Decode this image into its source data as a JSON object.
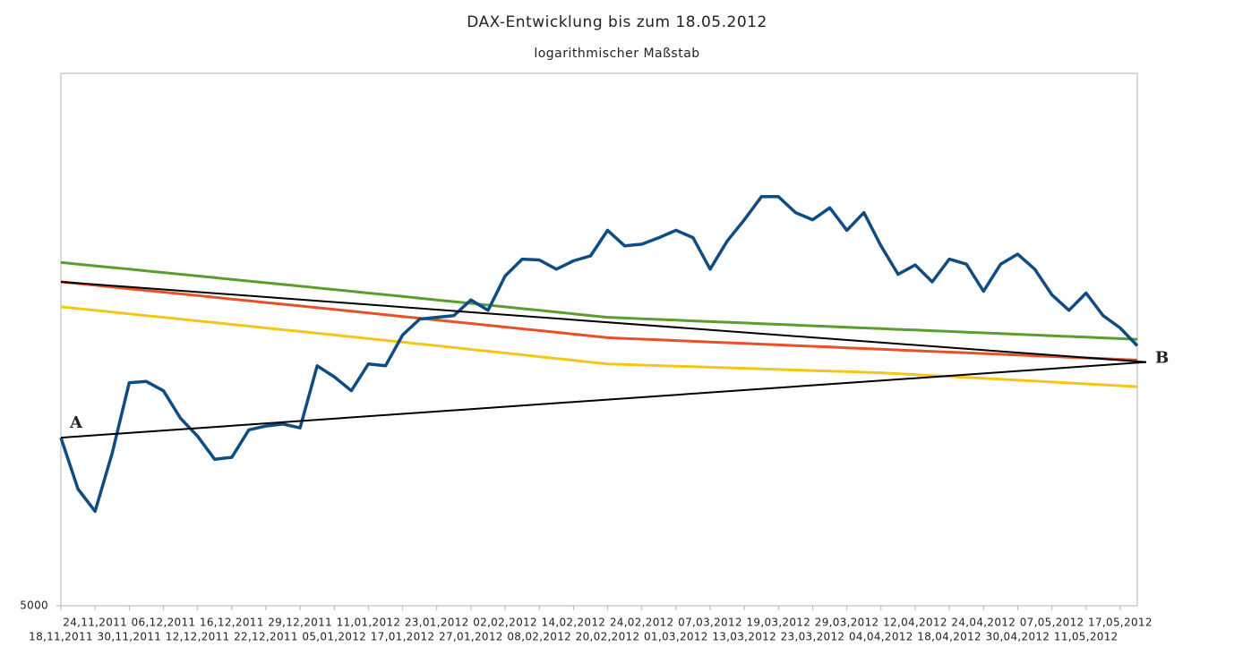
{
  "chart_data": {
    "type": "line",
    "title": "DAX-Entwicklung bis zum 18.05.2012",
    "subtitle": "logarithmischer Maßstab",
    "log_scale": true,
    "ylim": [
      5000,
      8000
    ],
    "yticks": [
      5000
    ],
    "categories": [
      "18,11,2011",
      null,
      "24,11,2011",
      null,
      "30,11,2011",
      null,
      "06,12,2011",
      null,
      "12,12,2011",
      null,
      "16,12,2011",
      null,
      "22,12,2011",
      null,
      "29,12,2011",
      null,
      "05,01,2012",
      null,
      "11,01,2012",
      null,
      "17,01,2012",
      null,
      "23,01,2012",
      null,
      "27,01,2012",
      null,
      "02,02,2012",
      null,
      "08,02,2012",
      null,
      "14,02,2012",
      null,
      "20,02,2012",
      null,
      "24,02,2012",
      null,
      "01,03,2012",
      null,
      "07,03,2012",
      null,
      "13,03,2012",
      null,
      "19,03,2012",
      null,
      "23,03,2012",
      null,
      "29,03,2012",
      null,
      "04,04,2012",
      null,
      "12,04,2012",
      null,
      "18,04,2012",
      null,
      "24,04,2012",
      null,
      "30,04,2012",
      null,
      "07,05,2012",
      null,
      "11,05,2012",
      null,
      "17,05,2012",
      null
    ],
    "series": [
      {
        "color": "#f5c518",
        "values": [
          6510,
          6500,
          6490,
          6480,
          6470,
          6460,
          6450,
          6440,
          6430,
          6420,
          6410,
          6400,
          6390,
          6380,
          6370,
          6360,
          6350,
          6340,
          6330,
          6320,
          6310,
          6300,
          6290,
          6280,
          6270,
          6260,
          6250,
          6240,
          6230,
          6220,
          6210,
          6200,
          6190,
          6187,
          6184,
          6181,
          6178,
          6175,
          6172,
          6169,
          6166,
          6163,
          6160,
          6157,
          6154,
          6151,
          6148,
          6145,
          6142,
          6137,
          6132,
          6127,
          6122,
          6117,
          6112,
          6107,
          6102,
          6097,
          6092,
          6087,
          6082,
          6077,
          6072,
          6067
        ]
      },
      {
        "color": "#e8502a",
        "values": [
          6655,
          6645,
          6635,
          6625,
          6615,
          6605,
          6595,
          6585,
          6575,
          6565,
          6555,
          6545,
          6535,
          6525,
          6515,
          6505,
          6495,
          6485,
          6475,
          6465,
          6455,
          6445,
          6435,
          6425,
          6415,
          6405,
          6395,
          6385,
          6375,
          6365,
          6355,
          6345,
          6335,
          6331,
          6327,
          6323,
          6319,
          6315,
          6311,
          6307,
          6303,
          6299,
          6295,
          6291,
          6287,
          6283,
          6279,
          6275,
          6271,
          6267,
          6263,
          6259,
          6255,
          6251,
          6247,
          6243,
          6239,
          6235,
          6231,
          6227,
          6223,
          6219,
          6215,
          6211
        ]
      },
      {
        "color": "#5a9e2f",
        "values": [
          6770,
          6760,
          6750,
          6740,
          6730,
          6720,
          6710,
          6700,
          6690,
          6680,
          6670,
          6660,
          6650,
          6640,
          6630,
          6620,
          6610,
          6600,
          6590,
          6580,
          6570,
          6560,
          6550,
          6540,
          6530,
          6520,
          6510,
          6500,
          6490,
          6480,
          6470,
          6460,
          6450,
          6446,
          6442,
          6438,
          6434,
          6430,
          6426,
          6422,
          6418,
          6414,
          6410,
          6406,
          6402,
          6398,
          6394,
          6390,
          6386,
          6382,
          6378,
          6374,
          6370,
          6366,
          6362,
          6358,
          6354,
          6350,
          6346,
          6342,
          6338,
          6334,
          6330,
          6326
        ]
      },
      {
        "color": "#0f4c81",
        "values": [
          5800,
          5543,
          5435,
          5720,
          6088,
          6095,
          6045,
          5900,
          5808,
          5690,
          5700,
          5840,
          5860,
          5870,
          5850,
          6180,
          6120,
          6045,
          6190,
          6180,
          6350,
          6440,
          6450,
          6460,
          6550,
          6490,
          6690,
          6790,
          6785,
          6730,
          6780,
          6810,
          6965,
          6870,
          6880,
          6920,
          6965,
          6920,
          6730,
          6900,
          7030,
          7175,
          7175,
          7075,
          7030,
          7105,
          6965,
          7075,
          6870,
          6700,
          6755,
          6655,
          6790,
          6760,
          6600,
          6760,
          6820,
          6730,
          6580,
          6490,
          6590,
          6460,
          6390,
          6290
        ]
      }
    ],
    "trendlines": [
      {
        "color": "#000000",
        "values": [
          5800,
          6200
        ]
      },
      {
        "color": "#000000",
        "values": [
          6655,
          6200
        ]
      }
    ],
    "annotations": [
      "A",
      "B"
    ]
  }
}
